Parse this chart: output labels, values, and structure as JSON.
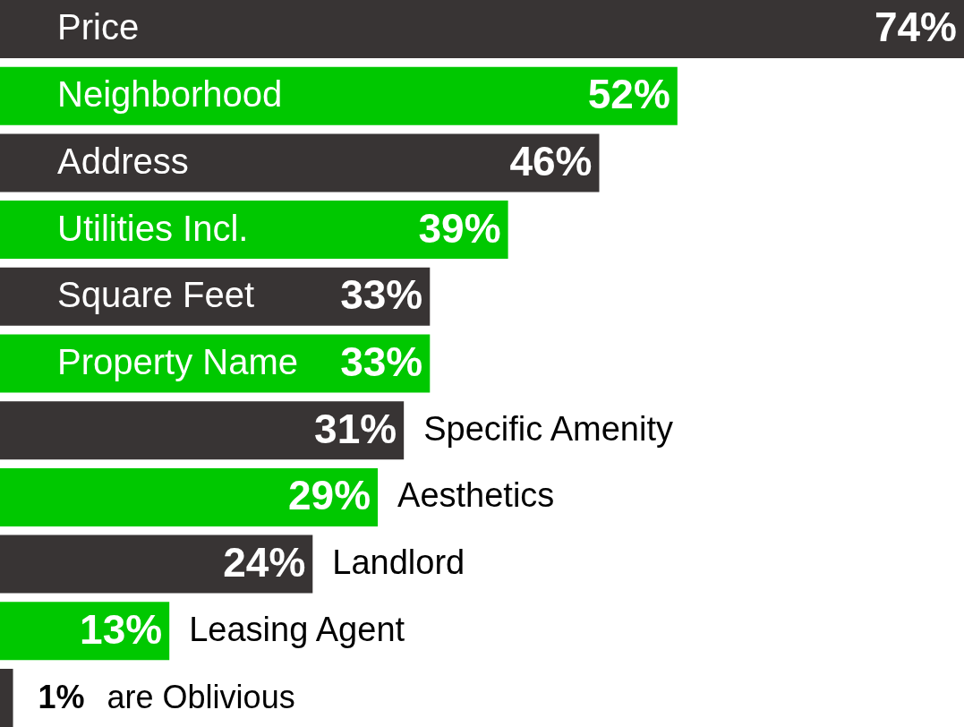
{
  "chart_data": {
    "type": "bar",
    "orientation": "horizontal",
    "categories": [
      "Price",
      "Neighborhood",
      "Address",
      "Utilities Incl.",
      "Square Feet",
      "Property Name",
      "Specific Amenity",
      "Aesthetics",
      "Landlord",
      "Leasing Agent",
      "are Oblivious"
    ],
    "values": [
      74,
      52,
      46,
      39,
      33,
      33,
      31,
      29,
      24,
      13,
      1
    ],
    "value_labels": [
      "74%",
      "52%",
      "46%",
      "39%",
      "33%",
      "33%",
      "31%",
      "29%",
      "24%",
      "13%",
      "1%"
    ],
    "colors": [
      "#383434",
      "#00c800",
      "#383434",
      "#00c800",
      "#383434",
      "#00c800",
      "#383434",
      "#00c800",
      "#383434",
      "#00c800",
      "#383434"
    ]
  }
}
